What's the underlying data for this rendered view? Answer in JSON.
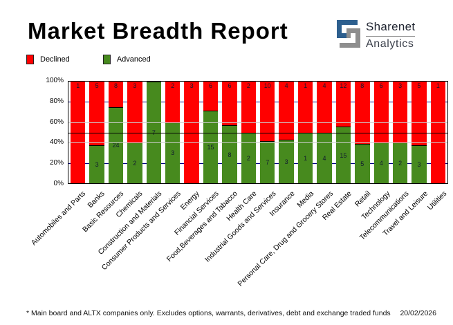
{
  "header": {
    "title": "Market Breadth Report",
    "logo": {
      "brand": "Sharenet",
      "sub": "Analytics",
      "mark_blue": "#2D5F8E",
      "mark_gray": "#8E8E8E"
    }
  },
  "legend": {
    "items": [
      {
        "label": "Declined",
        "color": "#FF0000"
      },
      {
        "label": "Advanced",
        "color": "#478A1E"
      }
    ]
  },
  "footer": {
    "note": "* Main board and ALTX companies only. Excludes options, warrants, derivatives, debt and exchange traded funds",
    "date": "20/02/2026"
  },
  "chart_data": {
    "type": "bar",
    "stacked": true,
    "normalized_to_percent": true,
    "title": "Market Breadth Report",
    "categories": [
      "Automobiles and Parts",
      "Banks",
      "Basic Resources",
      "Chemicals",
      "Construction and Materials",
      "Consumer Products and Services",
      "Energy",
      "Financial Services",
      "Food,Beverages and Tabacco",
      "Health Care",
      "Industrial Goods and Services",
      "Insurance",
      "Media",
      "Personal Care, Drug and Grocery Stores",
      "Real Estate",
      "Retail",
      "Technology",
      "Telecommunications",
      "Travel and Leisure",
      "Utilities"
    ],
    "series": [
      {
        "name": "Declined",
        "color": "#FF0000",
        "values": [
          1,
          5,
          8,
          3,
          0,
          2,
          3,
          6,
          6,
          2,
          10,
          4,
          1,
          4,
          12,
          8,
          6,
          3,
          5,
          1
        ]
      },
      {
        "name": "Advanced",
        "color": "#478A1E",
        "values": [
          0,
          3,
          24,
          2,
          7,
          3,
          0,
          15,
          8,
          2,
          7,
          3,
          1,
          4,
          15,
          5,
          4,
          2,
          3,
          0
        ]
      }
    ],
    "y_axis": {
      "ticks": [
        "0%",
        "20%",
        "40%",
        "60%",
        "80%",
        "100%"
      ],
      "range": [
        0,
        100
      ]
    },
    "gridlines": {
      "behind_levels": [
        20,
        80
      ],
      "behind_color": "#000080",
      "front_levels": [
        40,
        60
      ],
      "front_color": "#CCCCCC",
      "mid_level": 50,
      "mid_color": "#000000"
    },
    "legend_position": "top-left"
  }
}
